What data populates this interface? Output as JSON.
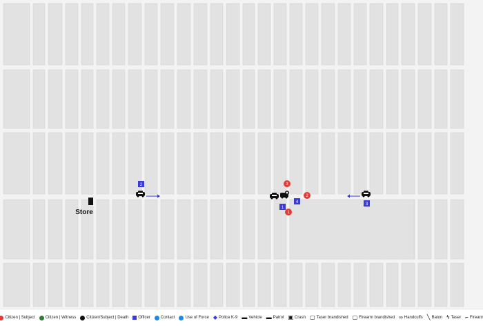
{
  "map": {
    "place_label": "Store",
    "colors": {
      "background": "#f1f1f1",
      "block": "#e2e2e2",
      "block_stroke": "#d4d4d4",
      "officer": "#3a3ad6",
      "subject": "#e53935",
      "arrow": "#3a3ad6"
    },
    "officers": [
      {
        "label": "1"
      },
      {
        "label": "2"
      },
      {
        "label": "3"
      },
      {
        "label": "4"
      }
    ],
    "subjects": [
      {
        "label": "1"
      },
      {
        "label": "2"
      },
      {
        "label": "3"
      }
    ],
    "icons": [
      "patrol-car-icon",
      "crash-icon",
      "store-marker-icon",
      "direction-arrow-icon"
    ]
  },
  "legend": [
    {
      "label": "Citizen | Subject",
      "icon": "dot",
      "color": "#e53935"
    },
    {
      "label": "Citizen | Witness",
      "icon": "dot",
      "color": "#2e7d32"
    },
    {
      "label": "Citizen/Subject | Death",
      "icon": "dot",
      "color": "#111111"
    },
    {
      "label": "Officer",
      "icon": "square",
      "color": "#3a3ad6"
    },
    {
      "label": "Contact",
      "icon": "dot",
      "color": "#1e88e5"
    },
    {
      "label": "Use of Force",
      "icon": "dot",
      "color": "#1e88e5"
    },
    {
      "label": "Police K-9",
      "icon": "paw",
      "color": "#3a3ad6"
    },
    {
      "label": "Vehicle",
      "icon": "car",
      "color": "#111111"
    },
    {
      "label": "Patrol",
      "icon": "patrol",
      "color": "#111111"
    },
    {
      "label": "Crash",
      "icon": "crash",
      "color": "#111111"
    },
    {
      "label": "Taser brandished",
      "icon": "taser-box",
      "color": "#111111"
    },
    {
      "label": "Firearm brandished",
      "icon": "gun-box",
      "color": "#111111"
    },
    {
      "label": "Handcuffs",
      "icon": "cuffs",
      "color": "#111111"
    },
    {
      "label": "Baton",
      "icon": "baton",
      "color": "#111111"
    },
    {
      "label": "Taser",
      "icon": "bolt",
      "color": "#111111"
    },
    {
      "label": "Firearm",
      "icon": "gun",
      "color": "#111111"
    }
  ]
}
